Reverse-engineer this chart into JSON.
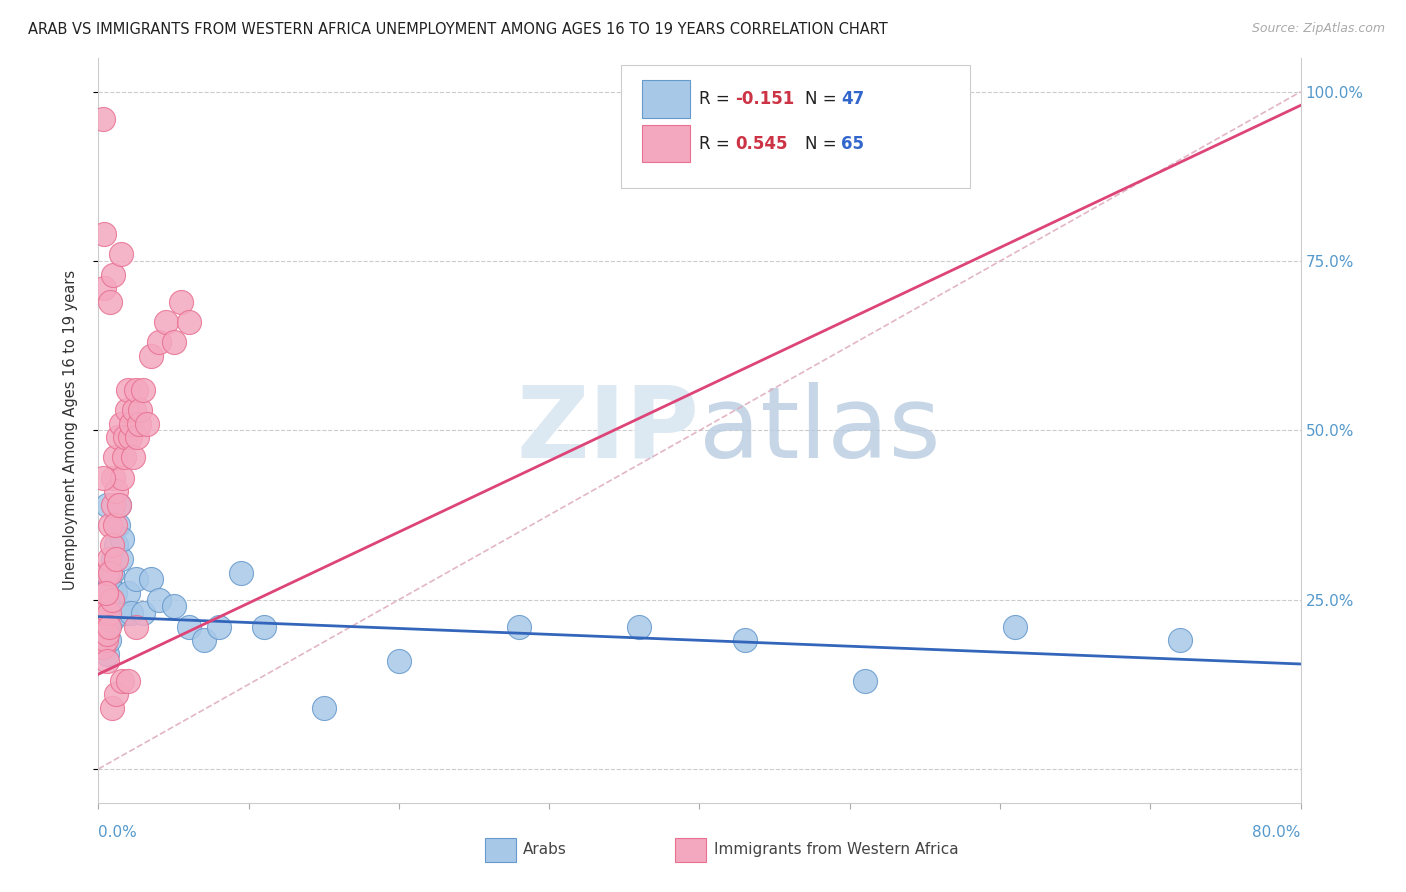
{
  "title": "ARAB VS IMMIGRANTS FROM WESTERN AFRICA UNEMPLOYMENT AMONG AGES 16 TO 19 YEARS CORRELATION CHART",
  "source": "Source: ZipAtlas.com",
  "ylabel": "Unemployment Among Ages 16 to 19 years",
  "xlim": [
    0.0,
    0.8
  ],
  "ylim": [
    -0.05,
    1.05
  ],
  "yticks": [
    0.0,
    0.25,
    0.5,
    0.75,
    1.0
  ],
  "ytick_labels_right": [
    "",
    "25.0%",
    "50.0%",
    "75.0%",
    "100.0%"
  ],
  "arab_color": "#a8c8e8",
  "arab_edge": "#6699cc",
  "imm_color": "#f4a8c0",
  "imm_edge": "#e87090",
  "arab_trend_color": "#3366bb",
  "imm_trend_color": "#dd4477",
  "ref_line_color": "#ddaabb",
  "legend_arab_R": "-0.151",
  "legend_arab_N": "47",
  "legend_imm_R": "0.545",
  "legend_imm_N": "65",
  "arab_x": [
    0.001,
    0.002,
    0.003,
    0.003,
    0.004,
    0.004,
    0.005,
    0.005,
    0.005,
    0.006,
    0.006,
    0.007,
    0.007,
    0.008,
    0.008,
    0.009,
    0.009,
    0.01,
    0.01,
    0.011,
    0.012,
    0.013,
    0.014,
    0.015,
    0.016,
    0.018,
    0.02,
    0.022,
    0.025,
    0.03,
    0.035,
    0.04,
    0.05,
    0.06,
    0.07,
    0.08,
    0.095,
    0.11,
    0.15,
    0.2,
    0.28,
    0.36,
    0.43,
    0.51,
    0.61,
    0.72,
    0.006
  ],
  "arab_y": [
    0.21,
    0.23,
    0.19,
    0.26,
    0.22,
    0.18,
    0.2,
    0.24,
    0.25,
    0.17,
    0.21,
    0.28,
    0.19,
    0.23,
    0.27,
    0.22,
    0.29,
    0.25,
    0.31,
    0.26,
    0.33,
    0.36,
    0.39,
    0.31,
    0.34,
    0.23,
    0.26,
    0.23,
    0.28,
    0.23,
    0.28,
    0.25,
    0.24,
    0.21,
    0.19,
    0.21,
    0.29,
    0.21,
    0.09,
    0.16,
    0.21,
    0.21,
    0.19,
    0.13,
    0.21,
    0.19,
    0.39
  ],
  "imm_x": [
    0.001,
    0.001,
    0.002,
    0.002,
    0.003,
    0.003,
    0.003,
    0.004,
    0.004,
    0.005,
    0.005,
    0.005,
    0.006,
    0.006,
    0.007,
    0.007,
    0.008,
    0.008,
    0.009,
    0.009,
    0.01,
    0.01,
    0.011,
    0.011,
    0.012,
    0.012,
    0.013,
    0.014,
    0.015,
    0.016,
    0.017,
    0.018,
    0.019,
    0.02,
    0.021,
    0.022,
    0.023,
    0.024,
    0.025,
    0.026,
    0.027,
    0.028,
    0.03,
    0.032,
    0.035,
    0.04,
    0.045,
    0.05,
    0.055,
    0.06,
    0.004,
    0.008,
    0.01,
    0.015,
    0.003,
    0.006,
    0.009,
    0.012,
    0.016,
    0.02,
    0.025,
    0.005,
    0.007,
    0.003,
    0.004
  ],
  "imm_y": [
    0.21,
    0.19,
    0.23,
    0.2,
    0.22,
    0.21,
    0.18,
    0.24,
    0.23,
    0.26,
    0.21,
    0.19,
    0.29,
    0.2,
    0.31,
    0.23,
    0.36,
    0.29,
    0.33,
    0.25,
    0.39,
    0.43,
    0.46,
    0.36,
    0.41,
    0.31,
    0.49,
    0.39,
    0.51,
    0.43,
    0.46,
    0.49,
    0.53,
    0.56,
    0.49,
    0.51,
    0.46,
    0.53,
    0.56,
    0.49,
    0.51,
    0.53,
    0.56,
    0.51,
    0.61,
    0.63,
    0.66,
    0.63,
    0.69,
    0.66,
    0.71,
    0.69,
    0.73,
    0.76,
    0.43,
    0.16,
    0.09,
    0.11,
    0.13,
    0.13,
    0.21,
    0.26,
    0.21,
    0.96,
    0.79
  ],
  "arab_trend_x0": 0.0,
  "arab_trend_x1": 0.8,
  "arab_trend_y0": 0.225,
  "arab_trend_y1": 0.155,
  "imm_trend_x0": 0.0,
  "imm_trend_x1": 0.8,
  "imm_trend_y0": 0.14,
  "imm_trend_y1": 0.98,
  "background_color": "#ffffff"
}
